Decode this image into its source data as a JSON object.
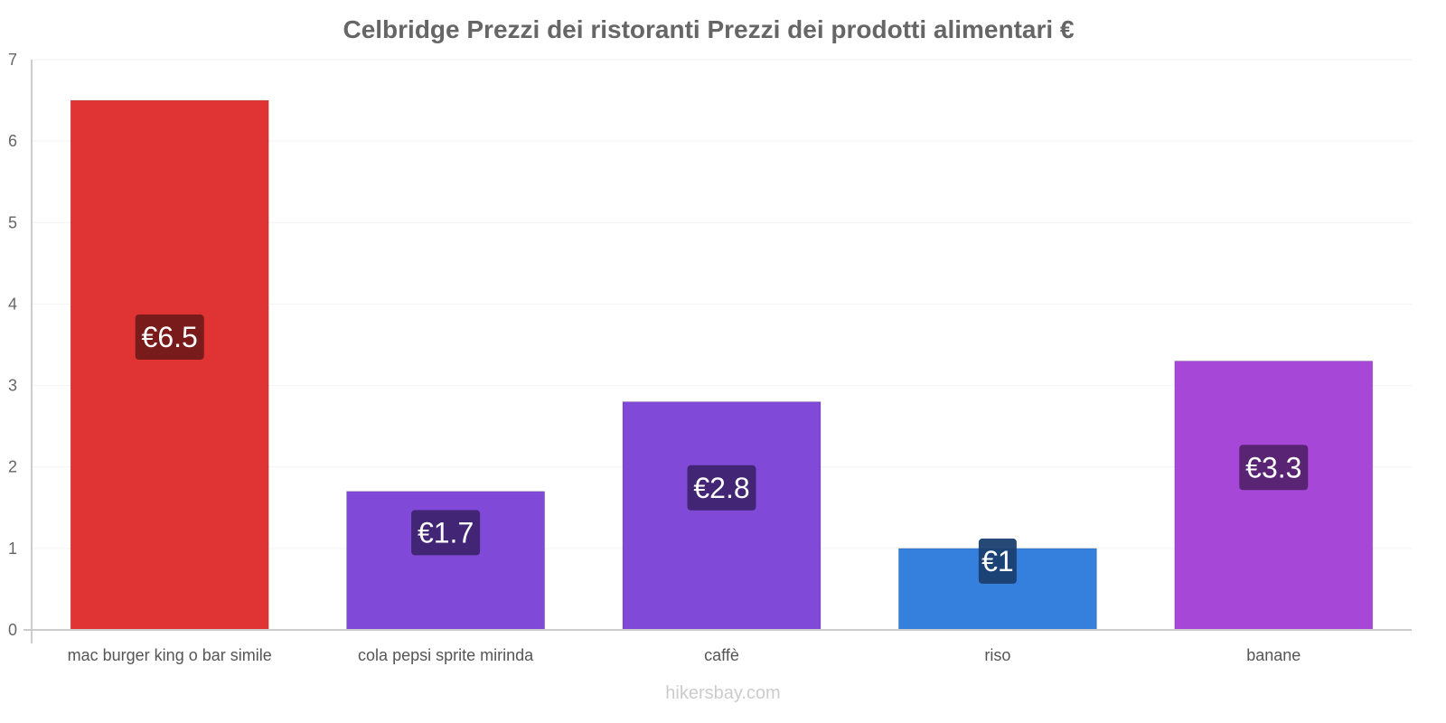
{
  "chart_data": {
    "type": "bar",
    "title": "Celbridge Prezzi dei ristoranti Prezzi dei prodotti alimentari €",
    "categories": [
      "mac burger king o bar simile",
      "cola pepsi sprite mirinda",
      "caffè",
      "riso",
      "banane"
    ],
    "values": [
      6.5,
      1.7,
      2.8,
      1,
      3.3
    ],
    "value_labels": [
      "€6.5",
      "€1.7",
      "€2.8",
      "€1",
      "€3.3"
    ],
    "colors": [
      "#e03434",
      "#8149d8",
      "#8149d8",
      "#3580dd",
      "#a647d8"
    ],
    "label_bg_colors": [
      "#731a1a",
      "#3e2470",
      "#3e2470",
      "#1b3f70",
      "#54236e"
    ],
    "ylim": [
      0,
      7
    ],
    "yticks": [
      "0",
      "1",
      "2",
      "3",
      "4",
      "5",
      "6",
      "7"
    ],
    "xlabel": "",
    "ylabel": "",
    "grid": true
  },
  "watermark": "hikersbay.com"
}
